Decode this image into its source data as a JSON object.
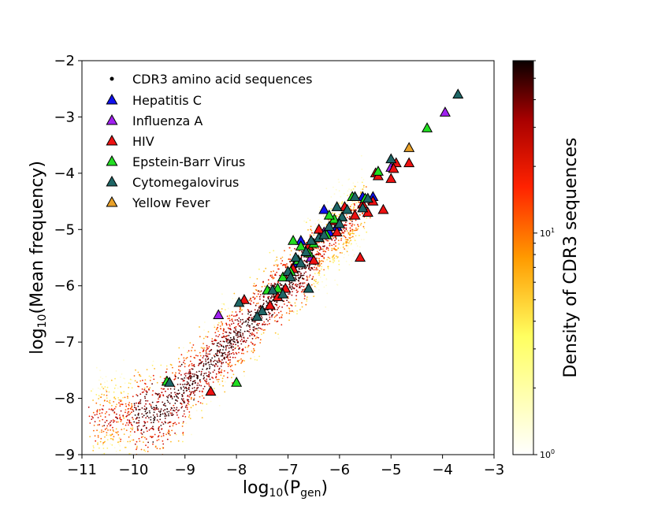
{
  "chart_data": {
    "type": "scatter",
    "xlabel": "log10(Pgen)",
    "xlabel_parts": {
      "prefix": "log",
      "sub": "10",
      "open": "(P",
      "sub2": "gen",
      "close": ")"
    },
    "ylabel": "log10(Mean frequency)",
    "ylabel_parts": {
      "prefix": "log",
      "sub": "10",
      "rest": "(Mean frequency)"
    },
    "xlim": [
      -11,
      -3
    ],
    "ylim": [
      -9,
      -2
    ],
    "xticks": [
      -11,
      -10,
      -9,
      -8,
      -7,
      -6,
      -5,
      -4,
      -3
    ],
    "yticks": [
      -9,
      -8,
      -7,
      -6,
      -5,
      -4,
      -3,
      -2
    ],
    "xtick_labels": [
      "−11",
      "−10",
      "−9",
      "−8",
      "−7",
      "−6",
      "−5",
      "−4",
      "−3"
    ],
    "ytick_labels": [
      "−9",
      "−8",
      "−7",
      "−6",
      "−5",
      "−4",
      "−3",
      "−2"
    ],
    "density_cloud": {
      "label": "CDR3 amino acid sequences",
      "color_scale": "hot_r",
      "trend": {
        "x_start": -10.8,
        "x_end": -5.6,
        "approx_points": 2600
      }
    },
    "colorbar": {
      "label": "Density of CDR3 sequences",
      "scale": "log",
      "min": 1,
      "max": 60,
      "tick_labels": [
        {
          "value": 1,
          "base": "10",
          "exp": "0"
        },
        {
          "value": 10,
          "base": "10",
          "exp": "1"
        }
      ]
    },
    "series": [
      {
        "name": "Hepatitis C",
        "color": "#1010ee",
        "points": [
          [
            -6.05,
            -4.95
          ],
          [
            -6.2,
            -5.05
          ],
          [
            -6.75,
            -5.2
          ],
          [
            -6.3,
            -4.65
          ],
          [
            -5.55,
            -4.42
          ],
          [
            -5.35,
            -4.42
          ],
          [
            -6.85,
            -5.6
          ]
        ]
      },
      {
        "name": "Influenza A",
        "color": "#a020f0",
        "points": [
          [
            -3.95,
            -2.92
          ],
          [
            -5.0,
            -3.9
          ],
          [
            -8.35,
            -6.52
          ],
          [
            -6.55,
            -5.5
          ],
          [
            -6.3,
            -5.05
          ]
        ]
      },
      {
        "name": "HIV",
        "color": "#ee1111",
        "points": [
          [
            -4.65,
            -3.82
          ],
          [
            -4.9,
            -3.82
          ],
          [
            -4.95,
            -3.92
          ],
          [
            -5.3,
            -4.0
          ],
          [
            -5.0,
            -4.1
          ],
          [
            -5.25,
            -4.05
          ],
          [
            -5.35,
            -4.5
          ],
          [
            -5.15,
            -4.65
          ],
          [
            -5.55,
            -4.55
          ],
          [
            -5.7,
            -4.75
          ],
          [
            -5.9,
            -4.6
          ],
          [
            -5.95,
            -4.78
          ],
          [
            -6.1,
            -4.85
          ],
          [
            -6.4,
            -5.0
          ],
          [
            -6.05,
            -5.05
          ],
          [
            -5.6,
            -5.5
          ],
          [
            -6.6,
            -5.3
          ],
          [
            -6.9,
            -5.7
          ],
          [
            -7.05,
            -6.05
          ],
          [
            -7.35,
            -6.35
          ],
          [
            -8.5,
            -7.88
          ],
          [
            -7.85,
            -6.25
          ],
          [
            -7.2,
            -6.2
          ],
          [
            -6.5,
            -5.55
          ],
          [
            -5.45,
            -4.7
          ]
        ]
      },
      {
        "name": "Epstein-Barr Virus",
        "color": "#22dd22",
        "points": [
          [
            -4.3,
            -3.2
          ],
          [
            -5.25,
            -3.97
          ],
          [
            -5.75,
            -4.42
          ],
          [
            -6.1,
            -4.82
          ],
          [
            -6.25,
            -5.1
          ],
          [
            -6.5,
            -5.25
          ],
          [
            -6.75,
            -5.3
          ],
          [
            -6.8,
            -5.55
          ],
          [
            -6.95,
            -5.75
          ],
          [
            -7.1,
            -5.85
          ],
          [
            -7.2,
            -6.05
          ],
          [
            -7.4,
            -6.08
          ],
          [
            -8.0,
            -7.72
          ],
          [
            -9.35,
            -7.7
          ],
          [
            -6.2,
            -4.75
          ],
          [
            -6.6,
            -5.42
          ],
          [
            -5.5,
            -4.45
          ],
          [
            -6.9,
            -5.2
          ]
        ]
      },
      {
        "name": "Cytomegalovirus",
        "color": "#1f6666",
        "points": [
          [
            -3.7,
            -2.6
          ],
          [
            -5.0,
            -3.75
          ],
          [
            -5.45,
            -4.45
          ],
          [
            -5.7,
            -4.42
          ],
          [
            -5.55,
            -4.62
          ],
          [
            -6.05,
            -4.6
          ],
          [
            -5.95,
            -4.78
          ],
          [
            -6.0,
            -4.9
          ],
          [
            -6.2,
            -4.95
          ],
          [
            -6.4,
            -5.15
          ],
          [
            -6.55,
            -5.2
          ],
          [
            -6.65,
            -5.4
          ],
          [
            -6.85,
            -5.5
          ],
          [
            -7.0,
            -5.75
          ],
          [
            -6.95,
            -5.85
          ],
          [
            -6.6,
            -6.05
          ],
          [
            -7.1,
            -6.15
          ],
          [
            -7.3,
            -6.08
          ],
          [
            -7.5,
            -6.45
          ],
          [
            -7.6,
            -6.55
          ],
          [
            -7.95,
            -6.3
          ],
          [
            -6.75,
            -5.6
          ],
          [
            -9.3,
            -7.72
          ],
          [
            -5.85,
            -4.65
          ],
          [
            -6.3,
            -5.1
          ]
        ]
      },
      {
        "name": "Yellow Fever",
        "color": "#e8a028",
        "points": [
          [
            -4.65,
            -3.55
          ]
        ]
      }
    ],
    "legend": {
      "location": "upper-left"
    }
  }
}
